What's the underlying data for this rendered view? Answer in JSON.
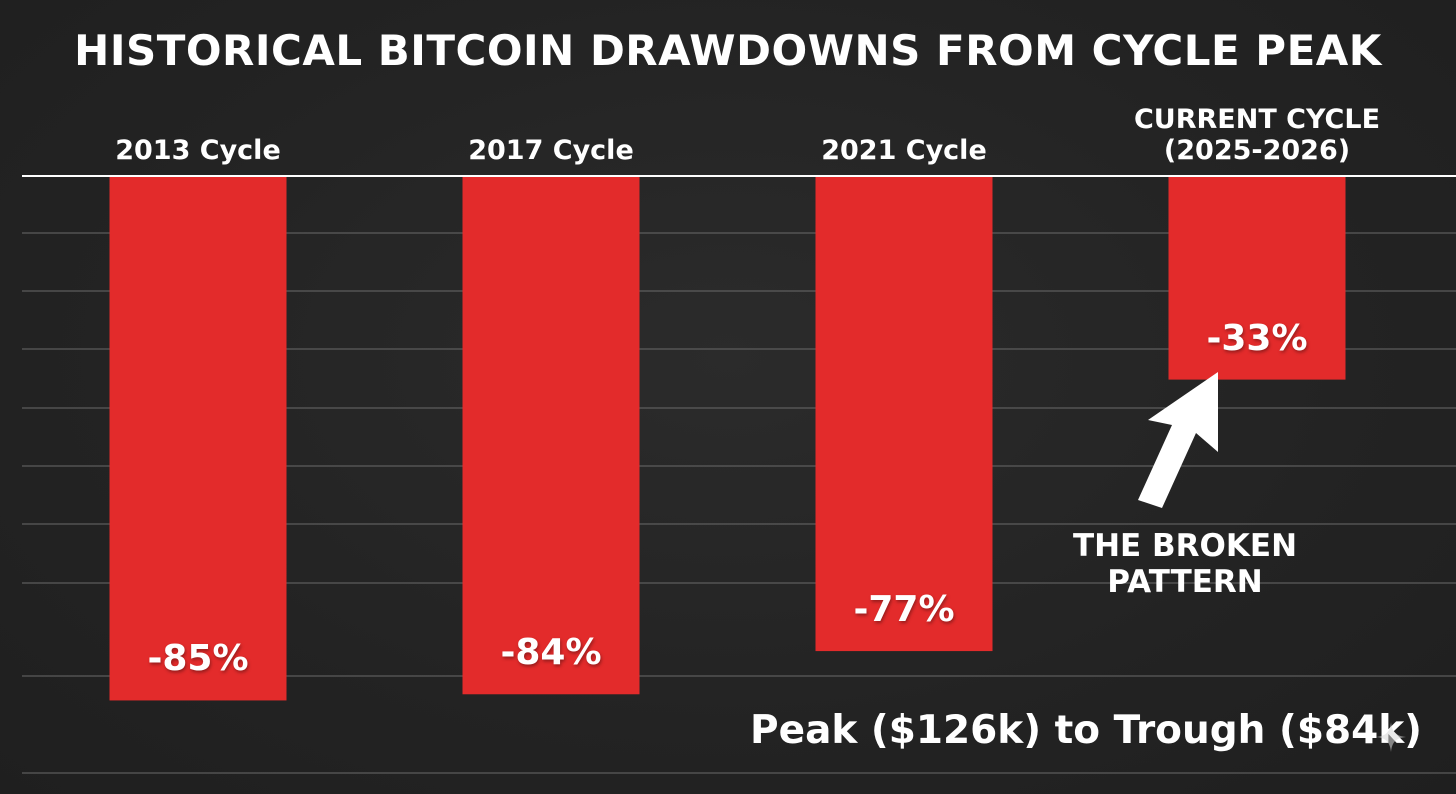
{
  "chart_data": {
    "type": "bar",
    "title": "HISTORICAL BITCOIN DRAWDOWNS FROM CYCLE PEAK",
    "categories": [
      [
        "2013 Cycle"
      ],
      [
        "2017 Cycle"
      ],
      [
        "2021 Cycle"
      ],
      [
        "CURRENT CYCLE",
        "(2025-2026)"
      ]
    ],
    "values": [
      -85,
      -84,
      -77,
      -33
    ],
    "value_labels": [
      "-85%",
      "-84%",
      "-77%",
      "-33%"
    ],
    "ylim": [
      -100,
      0
    ],
    "grid": true,
    "xlabel": "",
    "ylabel": "",
    "annotation": {
      "lines": [
        "THE BROKEN",
        "PATTERN"
      ],
      "target_category": "CURRENT CYCLE (2025-2026)"
    },
    "footnote": "Peak ($126k) to Trough ($84k)"
  },
  "colors": {
    "bar": "#e32b2b",
    "background": "#232323",
    "grid": "#6a6a6a",
    "axis": "#ffffff",
    "text": "#ffffff"
  },
  "icons": {
    "arrow": "arrow-up-icon",
    "watermark": "sparkle-icon"
  }
}
